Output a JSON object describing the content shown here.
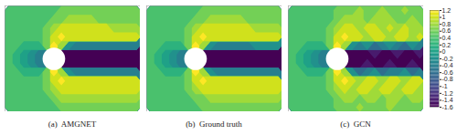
{
  "chart_data": {
    "type": "heatmap",
    "tick_labels": false,
    "colorbar": {
      "lim": [
        -1.6,
        1.2
      ],
      "ticks": [
        1.2,
        1,
        0.8,
        0.6,
        0.4,
        0.2,
        0,
        -0.2,
        -0.4,
        -0.6,
        -0.8,
        -1,
        -1.2,
        -1.4,
        -1.6
      ]
    },
    "panels": [
      {
        "title": "(a)  AMGNET",
        "cells": [
          [
            0.4,
            0.4,
            0.4,
            0.4,
            0.4,
            0.4,
            0.4,
            0.6,
            0.6,
            0.6,
            0.6,
            0.6,
            0.6,
            0.6,
            0.6,
            0.6,
            0.6,
            0.6
          ],
          [
            0.4,
            0.4,
            0.4,
            0.4,
            0.4,
            0.4,
            0.6,
            0.6,
            0.8,
            0.8,
            0.8,
            0.8,
            0.6,
            0.6,
            0.6,
            0.6,
            0.6,
            0.6
          ],
          [
            0.4,
            0.4,
            0.4,
            0.4,
            0.4,
            0.6,
            0.8,
            1.0,
            1.0,
            1.0,
            1.0,
            1.0,
            1.0,
            1.0,
            0.8,
            0.8,
            0.8,
            0.8
          ],
          [
            0.4,
            0.4,
            0.4,
            0.4,
            0.4,
            0.6,
            1.0,
            1.2,
            1.0,
            1.0,
            1.0,
            1.0,
            1.0,
            1.0,
            1.0,
            1.0,
            1.0,
            1.0
          ],
          [
            0.4,
            0.4,
            0.2,
            0.2,
            0.2,
            0.6,
            1.2,
            0.8,
            -0.2,
            -0.4,
            -0.4,
            -0.4,
            -0.4,
            -0.4,
            -0.4,
            -0.4,
            -0.4,
            -0.4
          ],
          [
            0.4,
            0.2,
            0.0,
            -0.2,
            -0.4,
            null,
            null,
            null,
            -1.6,
            -1.6,
            -1.6,
            -1.6,
            -1.6,
            -1.6,
            -1.6,
            -1.6,
            -1.6,
            -1.6
          ],
          [
            0.4,
            0.2,
            0.0,
            -0.2,
            -0.4,
            null,
            null,
            null,
            -1.6,
            -1.6,
            -1.6,
            -1.6,
            -1.6,
            -1.6,
            -1.6,
            -1.6,
            -1.6,
            -1.6
          ],
          [
            0.4,
            0.4,
            0.2,
            0.2,
            0.2,
            0.6,
            1.2,
            0.8,
            -0.2,
            -0.4,
            -0.4,
            -0.4,
            -0.4,
            -0.4,
            -0.4,
            -0.4,
            -0.4,
            -0.4
          ],
          [
            0.4,
            0.4,
            0.4,
            0.4,
            0.4,
            0.6,
            1.0,
            1.2,
            1.0,
            1.0,
            1.0,
            1.0,
            1.0,
            1.0,
            1.0,
            1.0,
            1.0,
            1.0
          ],
          [
            0.4,
            0.4,
            0.4,
            0.4,
            0.4,
            0.6,
            0.8,
            1.0,
            1.0,
            1.0,
            1.0,
            1.0,
            1.0,
            1.0,
            1.0,
            1.0,
            1.0,
            1.0
          ],
          [
            0.4,
            0.4,
            0.4,
            0.4,
            0.4,
            0.4,
            0.6,
            0.8,
            0.8,
            0.8,
            0.8,
            0.8,
            0.8,
            0.8,
            0.8,
            0.8,
            0.8,
            0.8
          ],
          [
            0.4,
            0.4,
            0.4,
            0.4,
            0.4,
            0.4,
            0.4,
            0.6,
            0.6,
            0.6,
            0.6,
            0.6,
            0.6,
            0.6,
            0.6,
            0.6,
            0.6,
            0.6
          ]
        ]
      },
      {
        "title": "(b)  Ground truth",
        "cells": [
          [
            0.4,
            0.4,
            0.4,
            0.4,
            0.4,
            0.4,
            0.4,
            0.6,
            0.6,
            0.6,
            0.6,
            0.6,
            0.6,
            0.6,
            0.6,
            0.6,
            0.6,
            0.6
          ],
          [
            0.4,
            0.4,
            0.4,
            0.4,
            0.4,
            0.4,
            0.6,
            0.6,
            0.8,
            0.8,
            0.8,
            0.8,
            0.8,
            0.6,
            0.6,
            0.6,
            0.6,
            0.6
          ],
          [
            0.4,
            0.4,
            0.4,
            0.4,
            0.4,
            0.6,
            0.8,
            1.0,
            1.0,
            1.0,
            1.0,
            1.0,
            1.0,
            1.0,
            0.8,
            0.8,
            0.8,
            0.8
          ],
          [
            0.4,
            0.4,
            0.4,
            0.4,
            0.4,
            0.6,
            1.0,
            1.2,
            1.0,
            1.0,
            1.0,
            1.0,
            1.0,
            1.0,
            1.0,
            1.0,
            1.0,
            1.0
          ],
          [
            0.4,
            0.4,
            0.2,
            0.2,
            0.2,
            0.6,
            1.2,
            0.8,
            -0.2,
            -0.4,
            -0.4,
            -0.4,
            -0.4,
            -0.4,
            -0.2,
            -0.2,
            -0.2,
            -0.2
          ],
          [
            0.4,
            0.2,
            0.0,
            -0.2,
            -0.4,
            null,
            null,
            null,
            -1.6,
            -1.6,
            -1.6,
            -1.6,
            -1.6,
            -1.6,
            -1.6,
            -1.6,
            -1.6,
            -1.6
          ],
          [
            0.4,
            0.2,
            0.0,
            -0.2,
            -0.4,
            null,
            null,
            null,
            -1.6,
            -1.6,
            -1.6,
            -1.6,
            -1.6,
            -1.6,
            -1.6,
            -1.6,
            -1.6,
            -1.6
          ],
          [
            0.4,
            0.4,
            0.2,
            0.2,
            0.2,
            0.6,
            1.2,
            0.8,
            -0.2,
            -0.4,
            -0.4,
            -0.4,
            -0.4,
            -0.4,
            -0.4,
            -0.4,
            -0.4,
            -0.4
          ],
          [
            0.4,
            0.4,
            0.4,
            0.4,
            0.4,
            0.6,
            1.0,
            1.2,
            1.0,
            1.0,
            1.0,
            1.0,
            1.0,
            1.0,
            1.0,
            1.0,
            1.0,
            1.0
          ],
          [
            0.4,
            0.4,
            0.4,
            0.4,
            0.4,
            0.6,
            0.8,
            1.0,
            1.0,
            1.0,
            1.0,
            1.0,
            1.0,
            1.0,
            1.0,
            1.0,
            1.0,
            1.0
          ],
          [
            0.4,
            0.4,
            0.4,
            0.4,
            0.4,
            0.4,
            0.6,
            0.6,
            0.8,
            0.8,
            0.8,
            0.8,
            0.8,
            0.8,
            0.8,
            0.8,
            0.8,
            0.8
          ],
          [
            0.4,
            0.4,
            0.4,
            0.4,
            0.4,
            0.4,
            0.4,
            0.6,
            0.6,
            0.6,
            0.6,
            0.6,
            0.6,
            0.6,
            0.6,
            0.6,
            0.6,
            0.6
          ]
        ]
      },
      {
        "title": "(c)  GCN",
        "cells": [
          [
            0.4,
            0.4,
            0.4,
            0.4,
            0.4,
            0.4,
            0.6,
            0.6,
            0.6,
            0.8,
            0.6,
            0.6,
            0.8,
            0.6,
            0.6,
            0.8,
            0.6,
            0.6
          ],
          [
            0.4,
            0.4,
            0.4,
            0.4,
            0.4,
            0.4,
            0.6,
            0.8,
            0.8,
            0.8,
            0.6,
            0.8,
            0.8,
            0.8,
            0.6,
            0.6,
            0.8,
            0.6
          ],
          [
            0.4,
            0.4,
            0.4,
            0.4,
            0.4,
            0.6,
            0.8,
            1.0,
            1.0,
            0.8,
            1.0,
            1.0,
            0.8,
            1.0,
            0.8,
            1.0,
            0.8,
            0.8
          ],
          [
            0.4,
            0.4,
            0.4,
            0.4,
            0.4,
            0.6,
            1.0,
            1.2,
            1.0,
            1.0,
            0.8,
            1.0,
            1.0,
            0.8,
            1.0,
            1.0,
            0.8,
            1.0
          ],
          [
            0.4,
            0.4,
            0.2,
            0.2,
            0.2,
            0.6,
            1.2,
            0.8,
            -0.2,
            -0.4,
            -0.2,
            -0.6,
            -0.4,
            -0.2,
            -0.4,
            -0.6,
            -0.2,
            -0.4
          ],
          [
            0.4,
            0.2,
            0.0,
            -0.2,
            -0.4,
            null,
            null,
            null,
            -1.6,
            -1.6,
            -1.6,
            -1.4,
            -1.6,
            -1.6,
            -1.4,
            -1.6,
            -1.6,
            -1.4
          ],
          [
            0.4,
            0.2,
            0.0,
            -0.2,
            -0.4,
            null,
            null,
            null,
            -1.6,
            -1.6,
            -1.4,
            -1.6,
            -1.6,
            -1.4,
            -1.6,
            -1.6,
            -1.4,
            -1.6
          ],
          [
            0.4,
            0.4,
            0.2,
            0.2,
            0.2,
            0.6,
            1.2,
            0.8,
            -0.2,
            -0.6,
            -0.4,
            -0.2,
            -0.6,
            -0.4,
            -0.4,
            -0.2,
            -0.6,
            -0.4
          ],
          [
            0.4,
            0.4,
            0.4,
            0.4,
            0.4,
            0.6,
            1.0,
            1.2,
            1.0,
            0.8,
            1.0,
            1.0,
            0.8,
            1.0,
            1.0,
            0.8,
            1.0,
            1.0
          ],
          [
            0.4,
            0.4,
            0.4,
            0.4,
            0.4,
            0.6,
            0.8,
            1.0,
            0.8,
            1.0,
            1.0,
            0.8,
            1.0,
            1.0,
            0.8,
            1.0,
            1.0,
            0.8
          ],
          [
            0.4,
            0.4,
            0.4,
            0.4,
            0.4,
            0.4,
            0.6,
            0.8,
            0.8,
            0.6,
            0.8,
            0.8,
            0.6,
            0.8,
            0.8,
            0.6,
            0.8,
            0.8
          ],
          [
            0.4,
            0.4,
            0.4,
            0.4,
            0.4,
            0.4,
            0.6,
            0.6,
            0.6,
            0.8,
            0.6,
            0.6,
            0.6,
            0.8,
            0.6,
            0.6,
            0.6,
            0.6
          ]
        ]
      }
    ]
  }
}
